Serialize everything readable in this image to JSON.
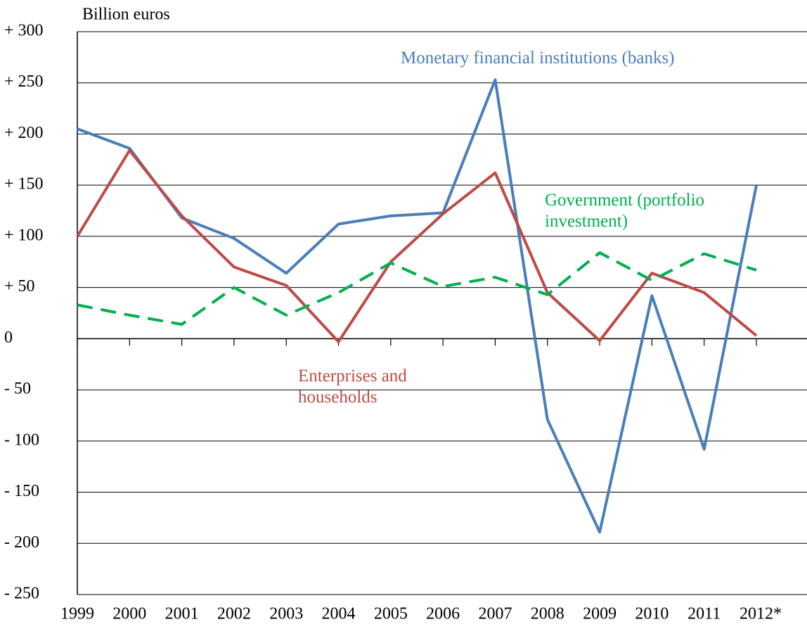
{
  "chart_data": {
    "type": "line",
    "y_label": "Billion euros",
    "categories": [
      "1999",
      "2000",
      "2001",
      "2002",
      "2003",
      "2004",
      "2005",
      "2006",
      "2007",
      "2008",
      "2009",
      "2010",
      "2011",
      "2012*"
    ],
    "series": [
      {
        "name": "Monetary financial institutions (banks)",
        "color": "#4a7ebb",
        "dash": false,
        "values": [
          205,
          186,
          118,
          98,
          64,
          112,
          120,
          123,
          253,
          -79,
          -189,
          42,
          -108,
          150
        ]
      },
      {
        "name": "Enterprises and households",
        "color": "#be4b48",
        "dash": false,
        "values": [
          100,
          184,
          120,
          70,
          52,
          -3,
          75,
          122,
          162,
          45,
          -2,
          64,
          45,
          3
        ]
      },
      {
        "name": "Government (portfolio investment)",
        "color": "#00b050",
        "dash": true,
        "values": [
          33,
          23,
          14,
          50,
          23,
          45,
          74,
          51,
          60,
          43,
          84,
          57,
          83,
          67
        ]
      }
    ],
    "ylim": [
      -250,
      300
    ],
    "yticks": [
      {
        "value": 300,
        "label": "+ 300"
      },
      {
        "value": 250,
        "label": "+ 250"
      },
      {
        "value": 200,
        "label": "+ 200"
      },
      {
        "value": 150,
        "label": "+ 150"
      },
      {
        "value": 100,
        "label": "+ 100"
      },
      {
        "value": 50,
        "label": "+ 50"
      },
      0,
      {
        "value": -50,
        "label": "- 50"
      },
      {
        "value": -100,
        "label": "- 100"
      },
      {
        "value": -150,
        "label": "- 150"
      },
      {
        "value": -200,
        "label": "- 200"
      },
      {
        "value": -250,
        "label": "- 250"
      }
    ],
    "grid": true
  }
}
